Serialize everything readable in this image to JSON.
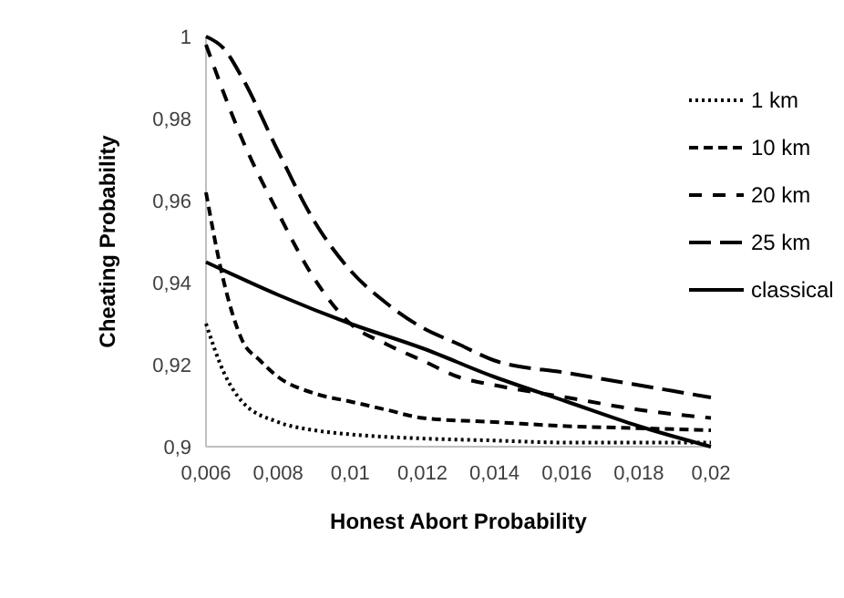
{
  "chart_data": {
    "type": "line",
    "xlabel": "Honest Abort Probability",
    "ylabel": "Cheating Probability",
    "xlim": [
      0.006,
      0.02
    ],
    "ylim": [
      0.9,
      1
    ],
    "xticks": [
      {
        "value": 0.006,
        "label": "0,006"
      },
      {
        "value": 0.008,
        "label": "0,008"
      },
      {
        "value": 0.01,
        "label": "0,01"
      },
      {
        "value": 0.012,
        "label": "0,012"
      },
      {
        "value": 0.014,
        "label": "0,014"
      },
      {
        "value": 0.016,
        "label": "0,016"
      },
      {
        "value": 0.018,
        "label": "0,018"
      },
      {
        "value": 0.02,
        "label": "0,02"
      }
    ],
    "yticks": [
      {
        "value": 0.9,
        "label": "0,9"
      },
      {
        "value": 0.92,
        "label": "0,92"
      },
      {
        "value": 0.94,
        "label": "0,94"
      },
      {
        "value": 0.96,
        "label": "0,96"
      },
      {
        "value": 0.98,
        "label": "0,98"
      },
      1
    ],
    "grid": false,
    "legend": "top right",
    "marker": "none",
    "series": [
      {
        "name": "1 km",
        "color": "#000000",
        "line_style": "dotted",
        "x": [
          0.006,
          0.0065,
          0.007,
          0.008,
          0.009,
          0.01,
          0.012,
          0.014,
          0.016,
          0.018,
          0.02
        ],
        "values": [
          0.93,
          0.918,
          0.911,
          0.906,
          0.904,
          0.903,
          0.902,
          0.9015,
          0.901,
          0.901,
          0.901
        ]
      },
      {
        "name": "10 km",
        "color": "#000000",
        "line_style": "short-dash",
        "x": [
          0.006,
          0.0065,
          0.007,
          0.0075,
          0.008,
          0.009,
          0.01,
          0.011,
          0.012,
          0.014,
          0.016,
          0.018,
          0.02
        ],
        "values": [
          0.962,
          0.94,
          0.926,
          0.921,
          0.917,
          0.913,
          0.911,
          0.909,
          0.907,
          0.906,
          0.905,
          0.9045,
          0.904
        ]
      },
      {
        "name": "20 km",
        "color": "#000000",
        "line_style": "dashed",
        "x": [
          0.006,
          0.007,
          0.008,
          0.009,
          0.01,
          0.011,
          0.012,
          0.013,
          0.014,
          0.016,
          0.018,
          0.02
        ],
        "values": [
          0.998,
          0.975,
          0.957,
          0.941,
          0.93,
          0.925,
          0.921,
          0.917,
          0.915,
          0.912,
          0.909,
          0.907
        ]
      },
      {
        "name": "25 km",
        "color": "#000000",
        "line_style": "long-dash",
        "x": [
          0.006,
          0.0065,
          0.007,
          0.008,
          0.009,
          0.01,
          0.011,
          0.012,
          0.013,
          0.014,
          0.016,
          0.018,
          0.02
        ],
        "values": [
          1,
          0.997,
          0.99,
          0.972,
          0.955,
          0.943,
          0.935,
          0.929,
          0.925,
          0.921,
          0.918,
          0.915,
          0.912
        ]
      },
      {
        "name": "classical",
        "color": "#000000",
        "line_style": "solid",
        "x": [
          0.006,
          0.008,
          0.01,
          0.012,
          0.014,
          0.016,
          0.018,
          0.02
        ],
        "values": [
          0.945,
          0.937,
          0.93,
          0.924,
          0.917,
          0.911,
          0.905,
          0.9
        ]
      }
    ]
  }
}
